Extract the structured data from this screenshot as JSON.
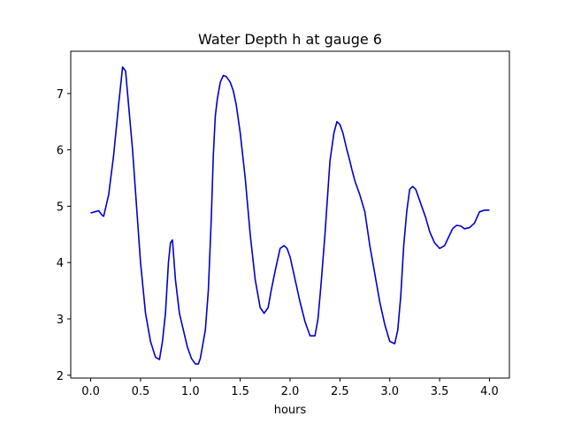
{
  "chart_data": {
    "type": "line",
    "title": "Water Depth h at gauge 6",
    "xlabel": "hours",
    "ylabel": "",
    "xlim": [
      -0.2,
      4.2
    ],
    "ylim": [
      1.95,
      7.75
    ],
    "x_ticks": [
      0.0,
      0.5,
      1.0,
      1.5,
      2.0,
      2.5,
      3.0,
      3.5,
      4.0
    ],
    "x_tick_labels": [
      "0.0",
      "0.5",
      "1.0",
      "1.5",
      "2.0",
      "2.5",
      "3.0",
      "3.5",
      "4.0"
    ],
    "y_ticks": [
      2,
      3,
      4,
      5,
      6,
      7
    ],
    "y_tick_labels": [
      "2",
      "3",
      "4",
      "5",
      "6",
      "7"
    ],
    "grid": false,
    "series": [
      {
        "color": "#0000cc",
        "x": [
          0.0,
          0.04,
          0.08,
          0.11,
          0.13,
          0.18,
          0.23,
          0.28,
          0.32,
          0.35,
          0.38,
          0.42,
          0.46,
          0.5,
          0.55,
          0.6,
          0.65,
          0.69,
          0.72,
          0.75,
          0.78,
          0.8,
          0.82,
          0.85,
          0.89,
          0.93,
          0.97,
          1.01,
          1.05,
          1.08,
          1.1,
          1.12,
          1.15,
          1.18,
          1.21,
          1.23,
          1.25,
          1.27,
          1.3,
          1.33,
          1.36,
          1.4,
          1.43,
          1.46,
          1.5,
          1.55,
          1.6,
          1.65,
          1.7,
          1.74,
          1.78,
          1.81,
          1.85,
          1.9,
          1.94,
          1.97,
          2.0,
          2.05,
          2.1,
          2.15,
          2.2,
          2.25,
          2.28,
          2.31,
          2.35,
          2.4,
          2.44,
          2.47,
          2.5,
          2.53,
          2.57,
          2.6,
          2.62,
          2.65,
          2.7,
          2.75,
          2.8,
          2.85,
          2.9,
          2.95,
          3.0,
          3.05,
          3.08,
          3.11,
          3.14,
          3.17,
          3.2,
          3.23,
          3.26,
          3.28,
          3.32,
          3.36,
          3.4,
          3.45,
          3.5,
          3.55,
          3.59,
          3.63,
          3.67,
          3.71,
          3.75,
          3.8,
          3.85,
          3.9,
          3.95,
          4.0
        ],
        "y": [
          4.88,
          4.9,
          4.92,
          4.85,
          4.82,
          5.2,
          5.9,
          6.8,
          7.47,
          7.4,
          6.8,
          6.0,
          5.0,
          4.0,
          3.1,
          2.6,
          2.32,
          2.28,
          2.6,
          3.1,
          4.0,
          4.35,
          4.4,
          3.7,
          3.1,
          2.8,
          2.5,
          2.3,
          2.2,
          2.2,
          2.3,
          2.5,
          2.8,
          3.5,
          4.8,
          5.9,
          6.6,
          6.9,
          7.2,
          7.32,
          7.3,
          7.2,
          7.05,
          6.8,
          6.3,
          5.5,
          4.5,
          3.7,
          3.2,
          3.1,
          3.2,
          3.5,
          3.85,
          4.25,
          4.3,
          4.25,
          4.1,
          3.7,
          3.3,
          2.95,
          2.7,
          2.7,
          3.0,
          3.6,
          4.5,
          5.8,
          6.3,
          6.5,
          6.45,
          6.3,
          6.0,
          5.8,
          5.65,
          5.45,
          5.2,
          4.9,
          4.3,
          3.8,
          3.3,
          2.9,
          2.6,
          2.56,
          2.8,
          3.4,
          4.3,
          4.9,
          5.3,
          5.35,
          5.3,
          5.2,
          5.0,
          4.8,
          4.55,
          4.35,
          4.25,
          4.3,
          4.45,
          4.6,
          4.66,
          4.65,
          4.6,
          4.62,
          4.7,
          4.9,
          4.93,
          4.93
        ]
      }
    ]
  }
}
